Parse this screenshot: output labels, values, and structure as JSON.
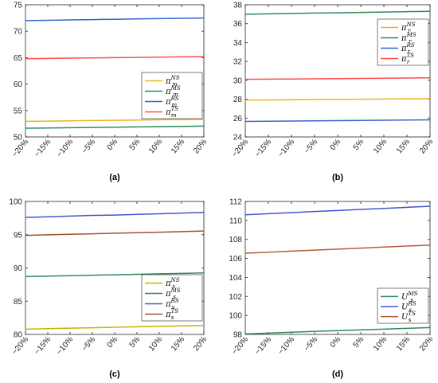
{
  "chart_data": [
    {
      "type": "line",
      "panel_label": "(a)",
      "x": [
        "-20%",
        "-15%",
        "-10%",
        "-5%",
        "0%",
        "5%",
        "10%",
        "15%",
        "20%"
      ],
      "x_values": [
        -20,
        -15,
        -10,
        -5,
        0,
        5,
        10,
        15,
        20
      ],
      "ylim": [
        50,
        75
      ],
      "yticks": [
        50,
        55,
        60,
        65,
        70,
        75
      ],
      "legend_position": "middle-right",
      "series": [
        {
          "name": "π_m^NS",
          "base": "π",
          "sub": "m",
          "sup": "NS",
          "color": "#EDB120",
          "values": [
            52.95,
            53.0,
            53.05,
            53.1,
            53.15,
            53.2,
            53.25,
            53.3,
            53.35
          ]
        },
        {
          "name": "π_m^MS",
          "base": "π",
          "sub": "m",
          "sup": "MS",
          "color": "#2E8B57",
          "values": [
            51.65,
            51.7,
            51.75,
            51.8,
            51.85,
            51.9,
            51.95,
            52.0,
            52.05
          ]
        },
        {
          "name": "π_m^RS",
          "base": "π",
          "sub": "m",
          "sup": "RS",
          "color": "#3366CC",
          "values": [
            72.0,
            72.07,
            72.13,
            72.2,
            72.26,
            72.32,
            72.38,
            72.44,
            72.5
          ]
        },
        {
          "name": "π_m^TS",
          "base": "π",
          "sub": "m",
          "sup": "TS",
          "color": "#FF4D4D",
          "values": [
            64.8,
            64.85,
            64.9,
            64.95,
            65.0,
            65.05,
            65.1,
            65.15,
            65.2
          ]
        }
      ]
    },
    {
      "type": "line",
      "panel_label": "(b)",
      "x": [
        "-20%",
        "-15%",
        "-10%",
        "-5%",
        "0%",
        "5%",
        "10%",
        "15%",
        "20%"
      ],
      "x_values": [
        -20,
        -15,
        -10,
        -5,
        0,
        5,
        10,
        15,
        20
      ],
      "ylim": [
        24,
        38
      ],
      "yticks": [
        24,
        26,
        28,
        30,
        32,
        34,
        36,
        38
      ],
      "legend_position": "top-right",
      "series": [
        {
          "name": "π_r^NS",
          "base": "π",
          "sub": "r",
          "sup": "NS",
          "color": "#EDB120",
          "values": [
            27.9,
            27.92,
            27.94,
            27.96,
            27.98,
            28.0,
            28.02,
            28.04,
            28.06
          ]
        },
        {
          "name": "π_r^MS",
          "base": "π",
          "sub": "r",
          "sup": "MS",
          "color": "#2E8B57",
          "values": [
            37.0,
            37.04,
            37.08,
            37.12,
            37.15,
            37.19,
            37.23,
            37.27,
            37.3
          ]
        },
        {
          "name": "π_r^RS",
          "base": "π",
          "sub": "r",
          "sup": "RS",
          "color": "#3366CC",
          "values": [
            25.65,
            25.67,
            25.69,
            25.71,
            25.73,
            25.75,
            25.77,
            25.79,
            25.81
          ]
        },
        {
          "name": "π_r^TS",
          "base": "π",
          "sub": "r",
          "sup": "TS",
          "color": "#FF4D4D",
          "values": [
            30.1,
            30.12,
            30.14,
            30.16,
            30.18,
            30.2,
            30.22,
            30.24,
            30.26
          ]
        }
      ]
    },
    {
      "type": "line",
      "panel_label": "(c)",
      "x": [
        "-20%",
        "-15%",
        "-10%",
        "-5%",
        "0%",
        "5%",
        "10%",
        "15%",
        "20%"
      ],
      "x_values": [
        -20,
        -15,
        -10,
        -5,
        0,
        5,
        10,
        15,
        20
      ],
      "ylim": [
        80,
        100
      ],
      "yticks": [
        80,
        85,
        90,
        95,
        100
      ],
      "legend_position": "bottom-right",
      "series": [
        {
          "name": "π_s^NS",
          "base": "π",
          "sub": "s",
          "sup": "NS",
          "color": "#C8B400",
          "values": [
            80.8,
            80.87,
            80.94,
            81.01,
            81.08,
            81.15,
            81.22,
            81.29,
            81.35
          ]
        },
        {
          "name": "π_s^MS",
          "base": "π",
          "sub": "s",
          "sup": "MS",
          "color": "#2E8B57",
          "values": [
            88.7,
            88.77,
            88.84,
            88.91,
            88.97,
            89.04,
            89.11,
            89.18,
            89.25
          ]
        },
        {
          "name": "π_s^RS",
          "base": "π",
          "sub": "s",
          "sup": "RS",
          "color": "#4455CC",
          "values": [
            97.6,
            97.7,
            97.8,
            97.9,
            97.95,
            98.05,
            98.15,
            98.25,
            98.35
          ]
        },
        {
          "name": "π_s^TS",
          "base": "π",
          "sub": "s",
          "sup": "TS",
          "color": "#A0522D",
          "values": [
            94.9,
            94.98,
            95.06,
            95.14,
            95.22,
            95.3,
            95.38,
            95.46,
            95.55
          ]
        }
      ]
    },
    {
      "type": "line",
      "panel_label": "(d)",
      "x": [
        "-20%",
        "-15%",
        "-10%",
        "-5%",
        "0%",
        "5%",
        "10%",
        "15%",
        "20%"
      ],
      "x_values": [
        -20,
        -15,
        -10,
        -5,
        0,
        5,
        10,
        15,
        20
      ],
      "ylim": [
        98,
        112
      ],
      "yticks": [
        98,
        100,
        102,
        104,
        106,
        108,
        110,
        112
      ],
      "legend_position": "bottom-right",
      "series": [
        {
          "name": "U_s^MS",
          "base": "U",
          "sub": "s",
          "sup": "MS",
          "color": "#2E8B57",
          "values": [
            98.05,
            98.14,
            98.23,
            98.32,
            98.4,
            98.48,
            98.56,
            98.64,
            98.72
          ]
        },
        {
          "name": "U_s^RS",
          "base": "U",
          "sub": "s",
          "sup": "RS",
          "color": "#4455CC",
          "values": [
            110.6,
            110.71,
            110.83,
            110.94,
            111.05,
            111.16,
            111.27,
            111.38,
            111.5
          ]
        },
        {
          "name": "U_s^TS",
          "base": "U",
          "sub": "s",
          "sup": "TS",
          "color": "#B85C38",
          "values": [
            106.55,
            106.66,
            106.77,
            106.88,
            106.98,
            107.09,
            107.2,
            107.3,
            107.4
          ]
        }
      ]
    }
  ]
}
